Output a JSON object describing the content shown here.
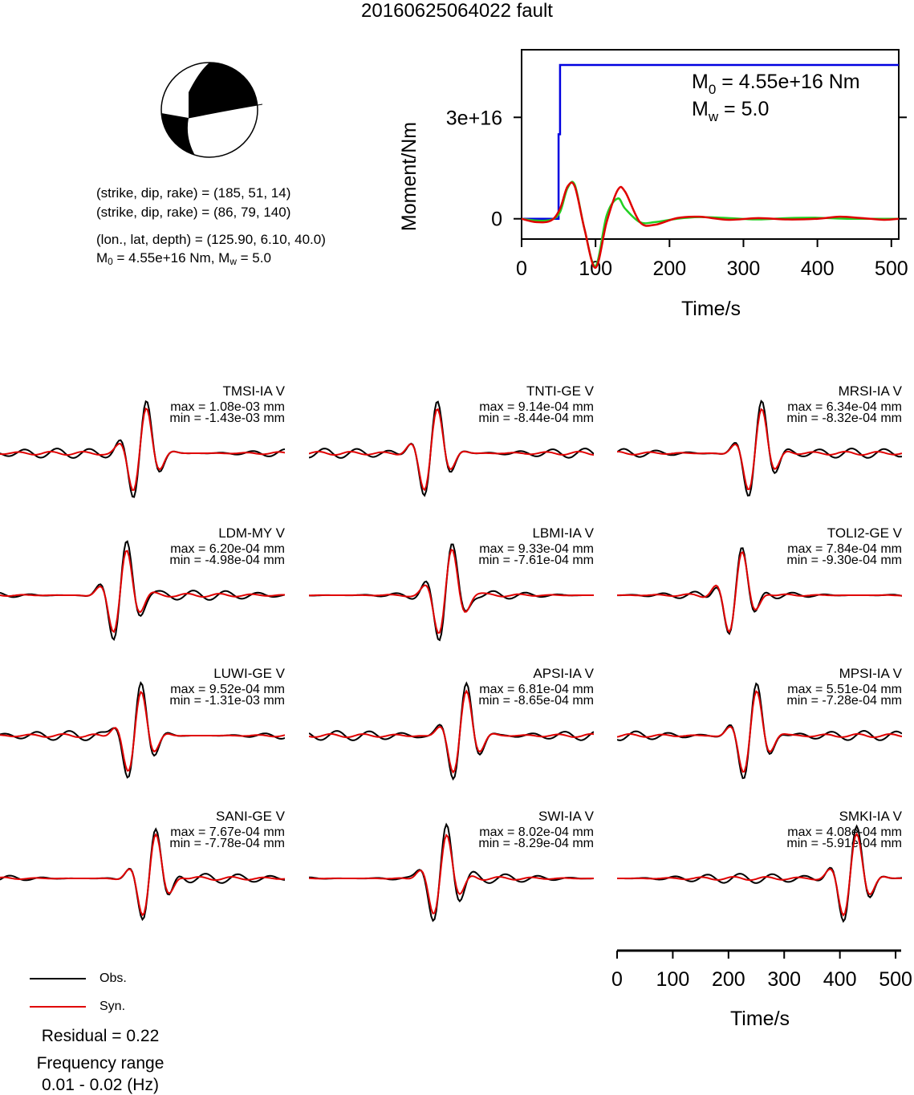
{
  "title": "20160625064022 fault",
  "colors": {
    "obs": "#000000",
    "syn": "#e00000",
    "moment_step": "#0000e0",
    "moment_green": "#22d022",
    "beachball_fill": "#000000"
  },
  "mechanism": {
    "plane1": "(strike, dip, rake) = (185, 51, 14)",
    "plane2": "(strike, dip, rake) = (86, 79, 140)",
    "location": "(lon., lat, depth) = (125.90, 6.10, 40.0)",
    "m0_prefix": "M",
    "m0_sub": "0",
    "m0_rest": " = 4.55e+16 Nm, M",
    "mw_sub": "w",
    "mw_rest": " = 5.0"
  },
  "stf": {
    "ylabel": "Moment/Nm",
    "xlabel": "Time/s",
    "m0_label_main": "M",
    "m0_label_sub": "0",
    "m0_label_rest": " = 4.55e+16 Nm",
    "mw_label_main": "M",
    "mw_label_sub": "w",
    "mw_label_rest": " = 5.0"
  },
  "stations": [
    {
      "name": "TMSI-IA V",
      "max": "max = 1.08e-03 mm",
      "min": "min = -1.43e-03 mm"
    },
    {
      "name": "TNTI-GE V",
      "max": "max = 9.14e-04 mm",
      "min": "min = -8.44e-04 mm"
    },
    {
      "name": "MRSI-IA V",
      "max": "max = 6.34e-04 mm",
      "min": "min = -8.32e-04 mm"
    },
    {
      "name": "LDM-MY V",
      "max": "max = 6.20e-04 mm",
      "min": "min = -4.98e-04 mm"
    },
    {
      "name": "LBMI-IA V",
      "max": "max = 9.33e-04 mm",
      "min": "min = -7.61e-04 mm"
    },
    {
      "name": "TOLI2-GE V",
      "max": "max = 7.84e-04 mm",
      "min": "min = -9.30e-04 mm"
    },
    {
      "name": "LUWI-GE V",
      "max": "max = 9.52e-04 mm",
      "min": "min = -1.31e-03 mm"
    },
    {
      "name": "APSI-IA V",
      "max": "max = 6.81e-04 mm",
      "min": "min = -8.65e-04 mm"
    },
    {
      "name": "MPSI-IA V",
      "max": "max = 5.51e-04 mm",
      "min": "min = -7.28e-04 mm"
    },
    {
      "name": "SANI-GE V",
      "max": "max = 7.67e-04 mm",
      "min": "min = -7.78e-04 mm"
    },
    {
      "name": "SWI-IA V",
      "max": "max = 8.02e-04 mm",
      "min": "min = -8.29e-04 mm"
    },
    {
      "name": "SMKI-IA V",
      "max": "max = 4.08e-04 mm",
      "min": "min = -5.91e-04 mm"
    }
  ],
  "legend": {
    "obs": "Obs.",
    "syn": "Syn."
  },
  "footer": {
    "residual": "Residual = 0.22",
    "freq_title": "Frequency range",
    "freq_value": "0.01 - 0.02 (Hz)"
  },
  "bottom_axis": {
    "xlabel": "Time/s"
  },
  "chart_data": [
    {
      "type": "line",
      "title": "",
      "xlabel": "Time/s",
      "ylabel": "Moment/Nm",
      "xlim": [
        0,
        510
      ],
      "ylim": [
        -6000000000000000.0,
        5e+16
      ],
      "x_ticks": [
        0,
        100,
        200,
        300,
        400,
        500
      ],
      "y_ticks": [
        0,
        3e+16
      ],
      "y_tick_labels": [
        "0",
        "3e+16"
      ],
      "annotations": [
        "M0 = 4.55e+16 Nm",
        "Mw = 5.0"
      ],
      "series": [
        {
          "color": "blue",
          "x": [
            0,
            50,
            50,
            52,
            52,
            510
          ],
          "y": [
            0,
            0,
            2.5e+16,
            2.5e+16,
            4.55e+16,
            4.55e+16
          ]
        },
        {
          "color": "green",
          "x": [
            0,
            20,
            40,
            52,
            62,
            72,
            85,
            100,
            115,
            130,
            140,
            160,
            180,
            210,
            240,
            280,
            320,
            360,
            400,
            440,
            480,
            510
          ],
          "y": [
            0,
            -500000000000000.0,
            -300000000000000.0,
            2000000000000000.0,
            9000000000000000.0,
            1e+16,
            -3000000000000000.0,
            -1.4e+16,
            1000000000000000.0,
            6000000000000000.0,
            3000000000000000.0,
            -1000000000000000.0,
            -1000000000000000.0,
            0,
            500000000000000.0,
            200000000000000.0,
            -200000000000000.0,
            200000000000000.0,
            300000000000000.0,
            0,
            0,
            0
          ]
        },
        {
          "color": "red",
          "x": [
            0,
            20,
            40,
            52,
            62,
            72,
            85,
            100,
            115,
            130,
            140,
            160,
            180,
            210,
            240,
            280,
            320,
            360,
            400,
            430,
            460,
            490,
            510
          ],
          "y": [
            0,
            -1000000000000000.0,
            -500000000000000.0,
            3000000000000000.0,
            9500000000000000.0,
            9500000000000000.0,
            -3000000000000000.0,
            -1.45e+16,
            -1000000000000000.0,
            8500000000000000.0,
            8000000000000000.0,
            -1000000000000000.0,
            -1800000000000000.0,
            200000000000000.0,
            600000000000000.0,
            -300000000000000.0,
            200000000000000.0,
            -200000000000000.0,
            0,
            600000000000000.0,
            200000000000000.0,
            -300000000000000.0,
            0
          ]
        }
      ]
    },
    {
      "type": "line",
      "title": "",
      "xlabel": "Time/s",
      "ylabel": "",
      "xlim": [
        0,
        510
      ],
      "x_ticks": [
        0,
        100,
        200,
        300,
        400,
        500
      ],
      "note": "Shared time axis for the 12 waveform panels (observed black vs synthetic red)"
    }
  ]
}
